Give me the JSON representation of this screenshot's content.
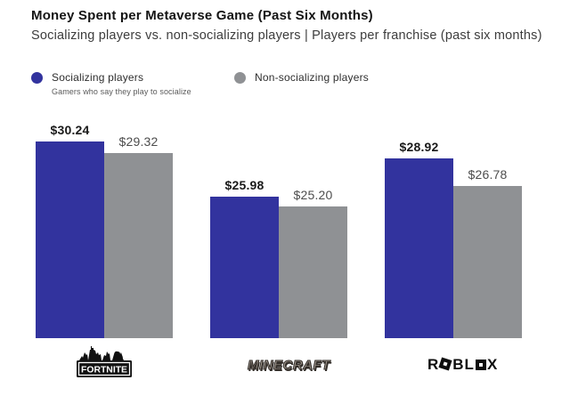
{
  "header": {
    "title": "Money Spent per Metaverse Game (Past Six Months)",
    "subtitle": "Socializing players vs. non-socializing players | Players per franchise (past six months)"
  },
  "legend": {
    "socializing": {
      "label": "Socializing players",
      "caption": "Gamers who say they play to socialize",
      "color": "#32339e"
    },
    "non_socializing": {
      "label": "Non-socializing players",
      "color": "#8f9194"
    }
  },
  "chart_data": {
    "type": "bar",
    "title": "Money Spent per Metaverse Game (Past Six Months)",
    "subtitle": "Socializing players vs. non-socializing players | Players per franchise (past six months)",
    "categories": [
      "Fortnite",
      "Minecraft",
      "Roblox"
    ],
    "series": [
      {
        "name": "Socializing players",
        "color": "#32339e",
        "values": [
          30.24,
          25.98,
          28.92
        ]
      },
      {
        "name": "Non-socializing players",
        "color": "#8f9194",
        "values": [
          29.32,
          25.2,
          26.78
        ]
      }
    ],
    "value_labels": [
      [
        "$30.24",
        "$25.98",
        "$28.92"
      ],
      [
        "$29.32",
        "$25.20",
        "$26.78"
      ]
    ],
    "value_prefix": "$",
    "ylim": [
      15,
      31.5
    ],
    "grid": false,
    "legend_position": "top-left",
    "value_labels_shown": true
  },
  "logos": {
    "fortnite": "FORTNITE",
    "minecraft": "MINECRAFT",
    "roblox": {
      "p1": "R",
      "p2": "BL",
      "p3": "X"
    }
  }
}
